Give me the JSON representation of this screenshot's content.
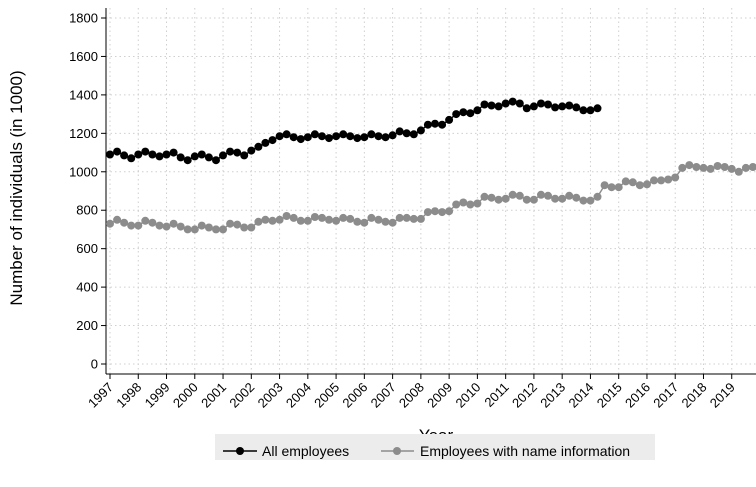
{
  "chart_data": {
    "type": "line",
    "xlabel": "Year",
    "ylabel": "Number of individuals (in 1000)",
    "xlim": [
      1997,
      2020
    ],
    "ylim": [
      0,
      1800
    ],
    "x_ticks": [
      "1997",
      "1998",
      "1999",
      "2000",
      "2001",
      "2002",
      "2003",
      "2004",
      "2005",
      "2006",
      "2007",
      "2008",
      "2009",
      "2010",
      "2011",
      "2012",
      "2013",
      "2014",
      "2015",
      "2016",
      "2017",
      "2018",
      "2019"
    ],
    "y_ticks": [
      0,
      200,
      400,
      600,
      800,
      1000,
      1200,
      1400,
      1600,
      1800
    ],
    "grid": true,
    "legend_position": "bottom",
    "series": [
      {
        "name": "All employees",
        "color": "#000000",
        "x_start": 1997,
        "x_step": 0.25,
        "values": [
          1090,
          1105,
          1085,
          1070,
          1090,
          1105,
          1090,
          1080,
          1090,
          1100,
          1075,
          1060,
          1080,
          1090,
          1075,
          1060,
          1085,
          1105,
          1100,
          1085,
          1110,
          1130,
          1150,
          1165,
          1185,
          1195,
          1180,
          1170,
          1180,
          1195,
          1185,
          1175,
          1185,
          1195,
          1185,
          1175,
          1180,
          1195,
          1185,
          1180,
          1190,
          1210,
          1200,
          1195,
          1215,
          1245,
          1250,
          1245,
          1270,
          1300,
          1310,
          1305,
          1320,
          1350,
          1345,
          1340,
          1355,
          1365,
          1355,
          1330,
          1340,
          1355,
          1350,
          1335,
          1340,
          1345,
          1335,
          1320,
          1320,
          1330
        ]
      },
      {
        "name": "Employees with name information",
        "color": "#8c8c8c",
        "x_start": 1997,
        "x_step": 0.25,
        "values": [
          730,
          750,
          735,
          720,
          720,
          745,
          735,
          720,
          715,
          730,
          715,
          700,
          700,
          720,
          710,
          700,
          700,
          730,
          725,
          710,
          710,
          740,
          750,
          745,
          750,
          770,
          760,
          745,
          745,
          765,
          760,
          750,
          745,
          760,
          755,
          740,
          735,
          760,
          750,
          740,
          735,
          760,
          760,
          755,
          755,
          790,
          795,
          790,
          795,
          830,
          840,
          830,
          835,
          870,
          865,
          855,
          860,
          880,
          875,
          855,
          855,
          880,
          875,
          860,
          860,
          875,
          865,
          850,
          850,
          870,
          930,
          920,
          920,
          950,
          945,
          930,
          935,
          955,
          955,
          960,
          970,
          1020,
          1035,
          1025,
          1020,
          1015,
          1030,
          1025,
          1015,
          1000,
          1020,
          1025,
          1020
        ]
      }
    ]
  }
}
